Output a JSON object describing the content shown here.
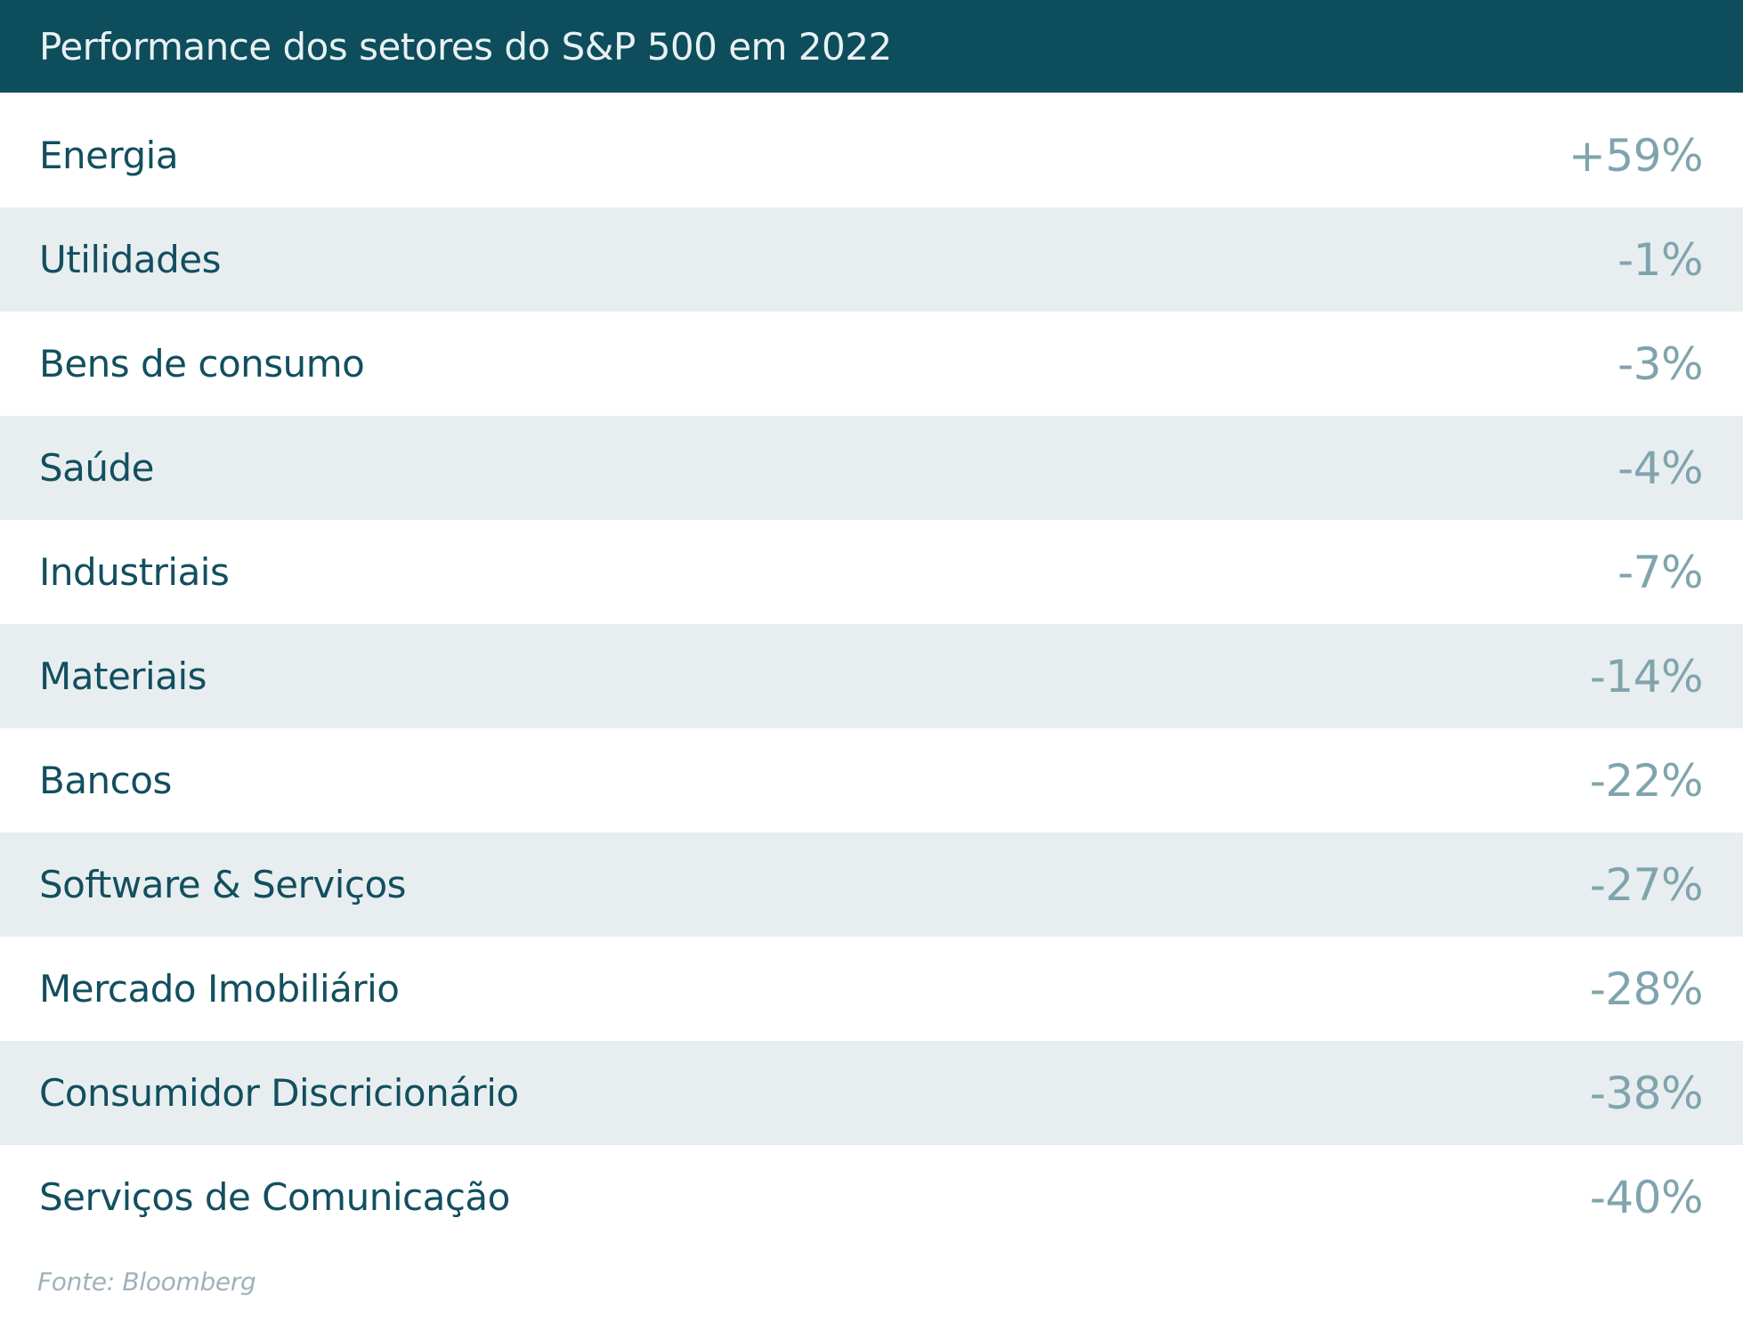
{
  "header": {
    "title": "Performance dos setores do S&P 500 em 2022"
  },
  "rows": [
    {
      "label": "Energia",
      "value": "+59%"
    },
    {
      "label": "Utilidades",
      "value": "-1%"
    },
    {
      "label": "Bens de consumo",
      "value": "-3%"
    },
    {
      "label": "Saúde",
      "value": "-4%"
    },
    {
      "label": "Industriais",
      "value": "-7%"
    },
    {
      "label": "Materiais",
      "value": "-14%"
    },
    {
      "label": "Bancos",
      "value": "-22%"
    },
    {
      "label": "Software & Serviços",
      "value": "-27%"
    },
    {
      "label": "Mercado Imobiliário",
      "value": "-28%"
    },
    {
      "label": "Consumidor Discricionário",
      "value": "-38%"
    },
    {
      "label": "Serviços de Comunicação",
      "value": "-40%"
    }
  ],
  "footer": {
    "source": "Fonte: Bloomberg"
  },
  "chart_data": {
    "type": "table",
    "title": "Performance dos setores do S&P 500 em 2022",
    "categories": [
      "Energia",
      "Utilidades",
      "Bens de consumo",
      "Saúde",
      "Industriais",
      "Materiais",
      "Bancos",
      "Software & Serviços",
      "Mercado Imobiliário",
      "Consumidor Discricionário",
      "Serviços de Comunicação"
    ],
    "values": [
      59,
      -1,
      -3,
      -4,
      -7,
      -14,
      -22,
      -27,
      -28,
      -38,
      -40
    ],
    "value_labels": [
      "+59%",
      "-1%",
      "-3%",
      "-4%",
      "-7%",
      "-14%",
      "-22%",
      "-27%",
      "-28%",
      "-38%",
      "-40%"
    ],
    "unit": "%",
    "source": "Fonte: Bloomberg",
    "layout": "zebra-striped list, labels left, values right"
  },
  "colors": {
    "header-bg": "#0d4d5c",
    "title-color": "#e9f1f3",
    "label-color": "#124f5f",
    "value-color": "#80a4ae",
    "row-alt-bg": "#e8eef0",
    "source-color": "#9eb2ba"
  }
}
